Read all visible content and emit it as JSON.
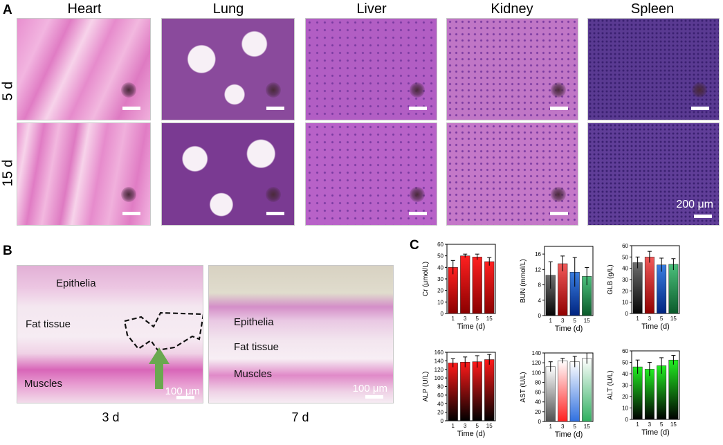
{
  "panel_a": {
    "letter": "A",
    "columns": [
      "Heart",
      "Lung",
      "Liver",
      "Kidney",
      "Spleen"
    ],
    "rows": [
      "5 d",
      "15 d"
    ],
    "scale_label": "200 μm"
  },
  "panel_b": {
    "letter": "B",
    "left": {
      "labels": [
        "Epithelia",
        "Fat tissue",
        "Muscles"
      ],
      "scale_label": "100 μm",
      "caption": "3 d"
    },
    "right": {
      "labels": [
        "Epithelia",
        "Fat tissue",
        "Muscles"
      ],
      "scale_label": "100 μm",
      "caption": "7 d"
    },
    "arrow_color": "#6aa84f"
  },
  "panel_c": {
    "letter": "C"
  },
  "chart_data": [
    {
      "type": "bar",
      "ylabel": "Cr (μmol/L)",
      "xlabel": "Time (d)",
      "categories": [
        "1",
        "3",
        "5",
        "15"
      ],
      "values": [
        40,
        50,
        49,
        45
      ],
      "errors": [
        6,
        1.5,
        2.5,
        3.5
      ],
      "ylim": [
        0,
        60
      ],
      "yticks": [
        0,
        10,
        20,
        30,
        40,
        50,
        60
      ],
      "gradient": [
        "#ff2020",
        "#8a0000"
      ]
    },
    {
      "type": "bar",
      "ylabel": "BUN (mmol/L)",
      "xlabel": "Time (d)",
      "categories": [
        "1",
        "3",
        "5",
        "15"
      ],
      "values": [
        10.5,
        13.5,
        11.3,
        10.2
      ],
      "errors": [
        3.5,
        2,
        3.8,
        2.3
      ],
      "ylim": [
        0,
        18
      ],
      "yticks": [
        0,
        4,
        8,
        12,
        16
      ],
      "gradients": [
        [
          "#6e6e6e",
          "#050505"
        ],
        [
          "#f25a5a",
          "#900000"
        ],
        [
          "#3a7ee0",
          "#002480"
        ],
        [
          "#4cc07c",
          "#0a5a2a"
        ]
      ]
    },
    {
      "type": "bar",
      "ylabel": "GLB (g/L)",
      "xlabel": "Time (d)",
      "categories": [
        "1",
        "3",
        "5",
        "15"
      ],
      "values": [
        45,
        50,
        43,
        43.5
      ],
      "errors": [
        5,
        5,
        6,
        5
      ],
      "ylim": [
        0,
        60
      ],
      "yticks": [
        0,
        10,
        20,
        30,
        40,
        50,
        60
      ],
      "gradients": [
        [
          "#6e6e6e",
          "#050505"
        ],
        [
          "#f25a5a",
          "#900000"
        ],
        [
          "#3a7ee0",
          "#002480"
        ],
        [
          "#4cc07c",
          "#0a5a2a"
        ]
      ]
    },
    {
      "type": "bar",
      "ylabel": "ALP (U/L)",
      "xlabel": "Time (d)",
      "categories": [
        "1",
        "3",
        "5",
        "15"
      ],
      "values": [
        135,
        137,
        138,
        143
      ],
      "errors": [
        10,
        12,
        14,
        12
      ],
      "ylim": [
        0,
        160
      ],
      "yticks": [
        0,
        20,
        40,
        60,
        80,
        100,
        120,
        140,
        160
      ],
      "gradient": [
        "#ff1a1a",
        "#000000"
      ]
    },
    {
      "type": "bar",
      "ylabel": "AST (U/L)",
      "xlabel": "Time (d)",
      "categories": [
        "1",
        "3",
        "5",
        "15"
      ],
      "values": [
        112,
        124,
        122,
        129
      ],
      "errors": [
        10,
        5,
        11,
        11
      ],
      "ylim": [
        0,
        140
      ],
      "yticks": [
        0,
        20,
        40,
        60,
        80,
        100,
        120,
        140
      ],
      "gradients": [
        [
          "#ffffff",
          "#505050"
        ],
        [
          "#ffffff",
          "#ff2020"
        ],
        [
          "#ffffff",
          "#3070e0"
        ],
        [
          "#ffffff",
          "#30b060"
        ]
      ]
    },
    {
      "type": "bar",
      "ylabel": "ALT (U/L)",
      "xlabel": "Time (d)",
      "categories": [
        "1",
        "3",
        "5",
        "15"
      ],
      "values": [
        46,
        44,
        47,
        52
      ],
      "errors": [
        6,
        6,
        7,
        4
      ],
      "ylim": [
        0,
        60
      ],
      "yticks": [
        0,
        10,
        20,
        30,
        40,
        50,
        60
      ],
      "gradient": [
        "#22ee22",
        "#000000"
      ]
    }
  ]
}
